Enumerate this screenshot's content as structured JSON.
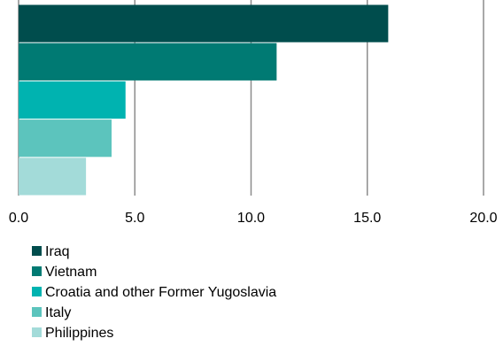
{
  "chart_data": {
    "type": "bar",
    "orientation": "horizontal",
    "categories": [
      "Iraq",
      "Vietnam",
      "Croatia and other Former Yugoslavia",
      "Italy",
      "Philippines"
    ],
    "values": [
      15.9,
      11.1,
      4.6,
      4.0,
      2.9
    ],
    "colors": [
      "#004d4d",
      "#007a73",
      "#00b3b0",
      "#5cc4bd",
      "#a3dbd9"
    ],
    "xlim": [
      0,
      20
    ],
    "xticks": [
      {
        "value": 0,
        "label": "0.0"
      },
      {
        "value": 5,
        "label": "5.0"
      },
      {
        "value": 10,
        "label": "10.0"
      },
      {
        "value": 15,
        "label": "15.0"
      },
      {
        "value": 20,
        "label": "20.0"
      }
    ],
    "grid": true,
    "legend": "bottom"
  }
}
